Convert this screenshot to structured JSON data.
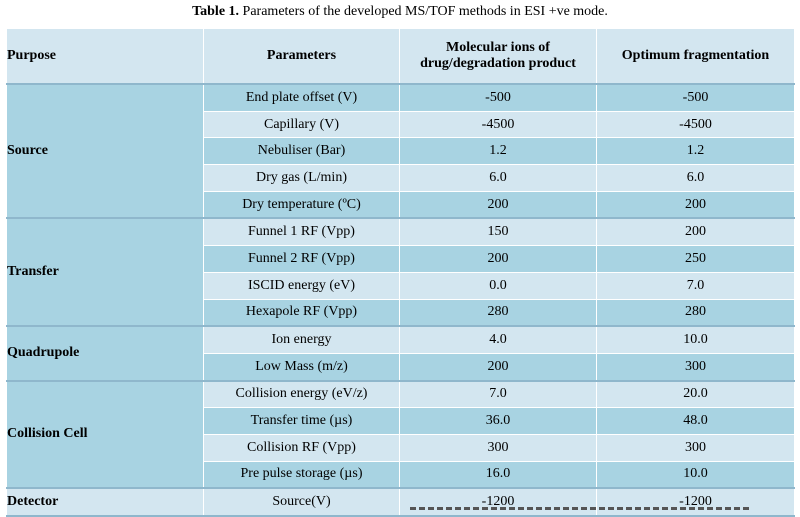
{
  "caption": {
    "label": "Table 1.",
    "text": " Parameters of the developed MS/TOF methods in ESI +ve mode."
  },
  "headers": {
    "purpose": "Purpose",
    "parameters": "Parameters",
    "molecular_line1": "Molecular ions of",
    "molecular_line2": "drug/degradation product",
    "optimum": "Optimum fragmentation"
  },
  "groups": [
    {
      "name": "Source",
      "rows": [
        {
          "parameter": "End plate offset (V)",
          "molecular": "-500",
          "optimum": "-500"
        },
        {
          "parameter": "Capillary (V)",
          "molecular": "-4500",
          "optimum": "-4500"
        },
        {
          "parameter": "Nebuliser (Bar)",
          "molecular": "1.2",
          "optimum": "1.2"
        },
        {
          "parameter": "Dry gas (L/min)",
          "molecular": "6.0",
          "optimum": "6.0"
        },
        {
          "parameter": "Dry temperature (ºC)",
          "molecular": "200",
          "optimum": "200"
        }
      ]
    },
    {
      "name": "Transfer",
      "rows": [
        {
          "parameter": "Funnel 1 RF (Vpp)",
          "molecular": "150",
          "optimum": "200"
        },
        {
          "parameter": "Funnel 2 RF (Vpp)",
          "molecular": "200",
          "optimum": "250"
        },
        {
          "parameter": "ISCID energy (eV)",
          "molecular": "0.0",
          "optimum": "7.0"
        },
        {
          "parameter": "Hexapole RF (Vpp)",
          "molecular": "280",
          "optimum": "280"
        }
      ]
    },
    {
      "name": "Quadrupole",
      "rows": [
        {
          "parameter": "Ion energy",
          "molecular": "4.0",
          "optimum": "10.0"
        },
        {
          "parameter": "Low Mass (m/z)",
          "molecular": "200",
          "optimum": "300"
        }
      ]
    },
    {
      "name": "Collision Cell",
      "rows": [
        {
          "parameter": "Collision energy (eV/z)",
          "molecular": "7.0",
          "optimum": "20.0"
        },
        {
          "parameter": "Transfer time (µs)",
          "molecular": "36.0",
          "optimum": "48.0"
        },
        {
          "parameter": "Collision RF (Vpp)",
          "molecular": "300",
          "optimum": "300"
        },
        {
          "parameter": "Pre pulse storage (µs)",
          "molecular": "16.0",
          "optimum": "10.0"
        }
      ]
    },
    {
      "name": "Detector",
      "rows": [
        {
          "parameter": "Source(V)",
          "molecular": "-1200",
          "optimum": "-1200"
        }
      ]
    }
  ],
  "colors": {
    "dark_row": "#a8d3e2",
    "light_row": "#d3e6f0",
    "rule": "#8fb7cc"
  }
}
